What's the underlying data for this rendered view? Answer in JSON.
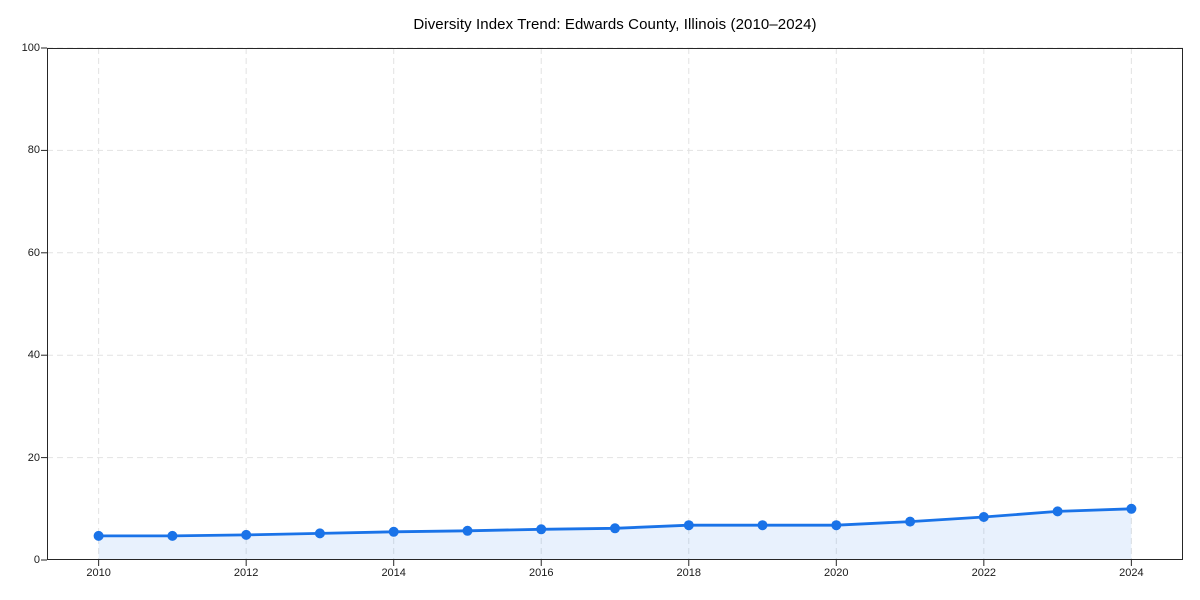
{
  "chart_data": {
    "type": "line",
    "title": "Diversity Index Trend: Edwards County, Illinois (2010–2024)",
    "x": [
      2010,
      2011,
      2012,
      2013,
      2014,
      2015,
      2016,
      2017,
      2018,
      2019,
      2020,
      2021,
      2022,
      2023,
      2024
    ],
    "values": [
      4.7,
      4.7,
      4.9,
      5.2,
      5.5,
      5.7,
      6.0,
      6.2,
      6.8,
      6.8,
      6.8,
      7.5,
      8.4,
      9.5,
      10.0
    ],
    "xlabel": "",
    "ylabel": "",
    "xlim": [
      2009.3,
      2024.7
    ],
    "ylim": [
      0,
      100
    ],
    "xtick_values": [
      2010,
      2012,
      2014,
      2016,
      2018,
      2020,
      2022,
      2024
    ],
    "xtick_labels": [
      "2010",
      "2012",
      "2014",
      "2016",
      "2018",
      "2020",
      "2022",
      "2024"
    ],
    "ytick_values": [
      0,
      20,
      40,
      60,
      80,
      100
    ],
    "ytick_labels": [
      "0",
      "20",
      "40",
      "60",
      "80",
      "100"
    ],
    "grid": "dashed, both axes, major ticks",
    "legend": "none",
    "marker": "circle",
    "colors": {
      "line": "#1a73e8",
      "fill": "#1a73e8",
      "fill_opacity": 0.1,
      "grid": "#e2e2e2",
      "spine": "#262626",
      "tick_text": "#1a1a1a",
      "background": "#ffffff"
    }
  }
}
